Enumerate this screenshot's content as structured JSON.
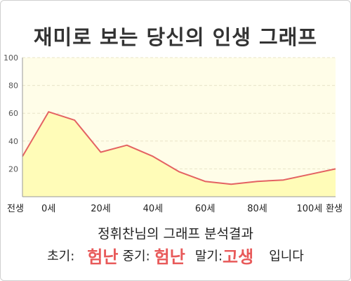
{
  "title": "재미로 보는 당신의 인생 그래프",
  "chart_data": {
    "type": "area",
    "categories": [
      "전생",
      "0세",
      "20세",
      "40세",
      "60세",
      "80세",
      "100세",
      "환생"
    ],
    "x": [
      -10,
      0,
      10,
      20,
      30,
      40,
      50,
      60,
      70,
      80,
      90,
      100,
      110
    ],
    "values": [
      29,
      61,
      55,
      32,
      37,
      29,
      18,
      11,
      9,
      11,
      12,
      16,
      20
    ],
    "yticks": [
      20,
      40,
      60,
      80,
      100
    ],
    "ylim": [
      0,
      100
    ],
    "xlim": [
      -10,
      110
    ],
    "grid": true,
    "colors": {
      "line": "#e46262",
      "fill": "#fffcb8",
      "plot_bg": "#fffde8",
      "grid": "#e8e4c8",
      "axis": "#999999"
    }
  },
  "result": {
    "heading": "정휘찬님의 그래프 분석결과",
    "early_label": "초기:",
    "early_value": "험난",
    "middle_label": "중기:",
    "middle_value": "험난",
    "late_label": "말기:",
    "late_value": "고생",
    "suffix": "입니다"
  }
}
